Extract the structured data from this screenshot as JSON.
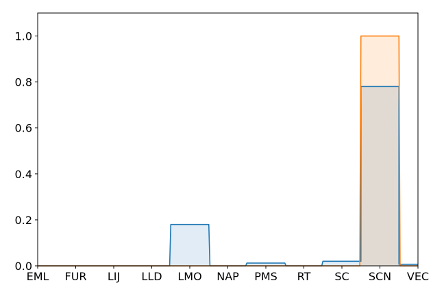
{
  "chart_data": {
    "type": "area",
    "categories": [
      "EML",
      "FUR",
      "LIJ",
      "LLD",
      "LMO",
      "NAP",
      "PMS",
      "RT",
      "SC",
      "SCN",
      "VEC"
    ],
    "series": [
      {
        "values": [
          0.0,
          0.0,
          0.0,
          0.0,
          0.18,
          0.0,
          0.012,
          0.0,
          0.02,
          0.78,
          0.007
        ],
        "color": "#1f77b4",
        "fill": "#dce9f5"
      },
      {
        "values": [
          0.0,
          0.0,
          0.0,
          0.0,
          0.0,
          0.0,
          0.0,
          0.0,
          0.0,
          1.0,
          0.0
        ],
        "color": "#ff7f0e",
        "fill": "#ffe9d3"
      }
    ],
    "ylim": [
      0,
      1.1
    ],
    "yticks": [
      "0.0",
      "0.2",
      "0.4",
      "0.6",
      "0.8",
      "1.0"
    ],
    "title": "",
    "xlabel": "",
    "ylabel": "",
    "grid": false
  }
}
